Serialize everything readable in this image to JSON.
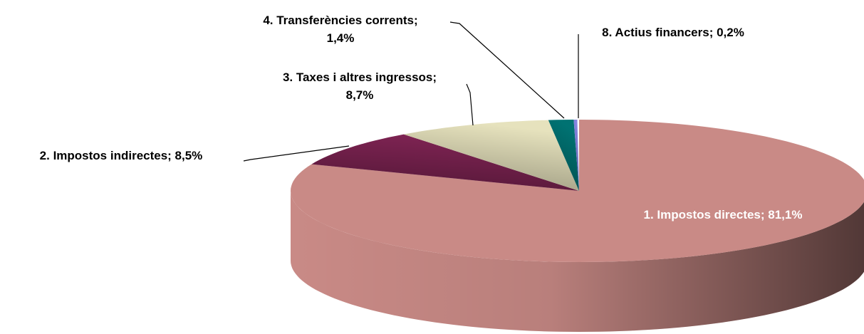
{
  "chart_data": {
    "type": "pie3d",
    "labels": [
      [
        "1. Impostos directes; 81,1%"
      ],
      [
        "2. Impostos indirectes; 8,5%"
      ],
      [
        "3. Taxes i altres ingressos;",
        "8,7%"
      ],
      [
        "4. Transferències corrents;",
        "1,4%"
      ],
      [
        "8. Actius financers; 0,2%"
      ]
    ],
    "values": [
      81.1,
      8.5,
      8.7,
      1.4,
      0.2
    ],
    "colors": [
      "#c98a86",
      "#7d2352",
      "#e6e2bd",
      "#007272",
      "#8585e0"
    ]
  }
}
